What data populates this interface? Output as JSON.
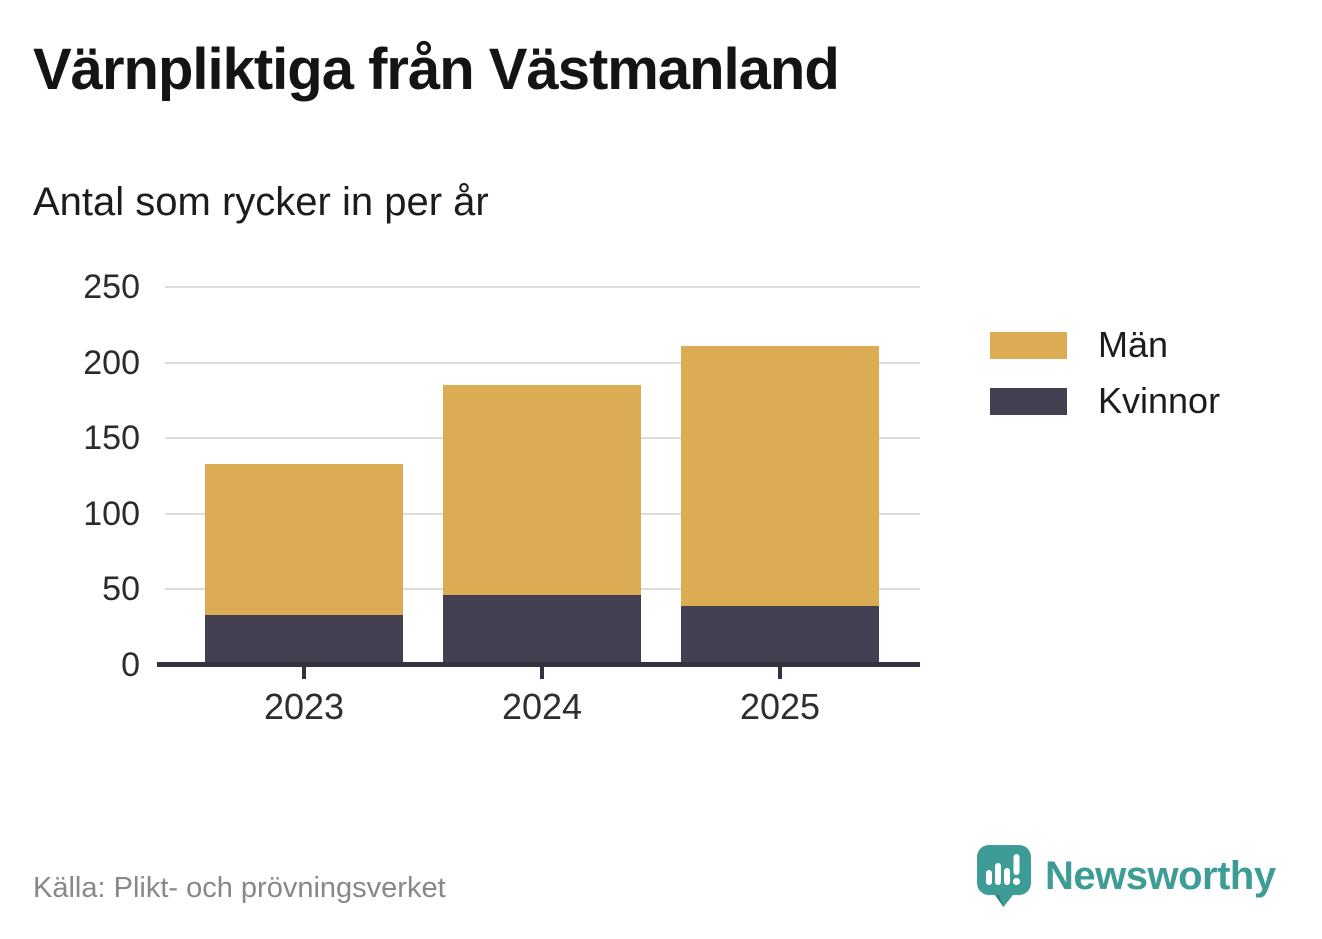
{
  "header": {
    "title": "Värnpliktiga från Västmanland",
    "subtitle": "Antal som rycker in per år"
  },
  "chart_data": {
    "type": "bar",
    "stacked": true,
    "title": "Värnpliktiga från Västmanland",
    "subtitle": "Antal som rycker in per år",
    "categories": [
      "2023",
      "2024",
      "2025"
    ],
    "series": [
      {
        "name": "Män",
        "color": "#DCAC55",
        "values": [
          100,
          139,
          172
        ]
      },
      {
        "name": "Kvinnor",
        "color": "#423F50",
        "values": [
          33,
          46,
          39
        ]
      }
    ],
    "totals": [
      133,
      185,
      211
    ],
    "y_ticks": [
      0,
      50,
      100,
      150,
      200,
      250
    ],
    "ylim": [
      0,
      250
    ],
    "xlabel": "",
    "ylabel": "",
    "grid": true,
    "legend_position": "right"
  },
  "footer": {
    "source": "Källa: Plikt- och prövningsverket",
    "brand": "Newsworthy"
  },
  "colors": {
    "axis": "#34323e",
    "gridline": "#dcdcdc",
    "brand_teal": "#3D9D96",
    "men": "#DCAC55",
    "women": "#423F50"
  }
}
